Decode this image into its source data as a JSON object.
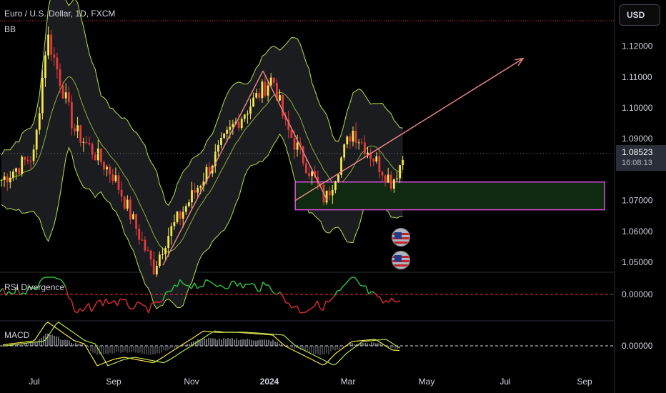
{
  "header": {
    "symbol_title": "Euro / U.S. Dollar, 1D, FXCM",
    "indicator_bb": "BB",
    "indicator_rsi": "RSI Divergence",
    "indicator_macd": "MACD",
    "currency_button": "USD"
  },
  "price_tag": {
    "price": "1.08523",
    "countdown": "16:08:13"
  },
  "colors": {
    "background": "#000000",
    "bull": "#f5e64b",
    "bear": "#e33b3b",
    "band_line": "#b6e24f",
    "band_fill": "#1b1c20",
    "zone_border": "#e14fe1",
    "zone_fill": "#0f2a10",
    "arrow": "#f08a8a",
    "rsi_up": "#2fbf3f",
    "rsi_down": "#d42d2d",
    "zero_line": "#e23b3b"
  },
  "icons": [
    "us-flag-icon",
    "us-flag-icon"
  ],
  "chart_data": [
    {
      "type": "candlestick",
      "title": "Euro / U.S. Dollar, 1D, FXCM",
      "x_ticks": [
        "Jul",
        "Sep",
        "Nov",
        "2024",
        "Mar",
        "May",
        "Jul",
        "Sep"
      ],
      "y_ticks": [
        "1.12000",
        "1.11000",
        "1.10000",
        "1.09000",
        "1.08523",
        "1.07000",
        "1.06000",
        "1.05000"
      ],
      "ylim": [
        1.047,
        1.128
      ],
      "current_price": 1.08523,
      "indicator": "BB",
      "path": [
        [
          "Jun 2023",
          1.075
        ],
        [
          "Jul 2023",
          1.085
        ],
        [
          "Jul 2023",
          1.124
        ],
        [
          "Aug 2023",
          1.093
        ],
        [
          "Sep 2023",
          1.078
        ],
        [
          "Oct 2023",
          1.048
        ],
        [
          "Oct 2023",
          1.058
        ],
        [
          "Nov 2023",
          1.072
        ],
        [
          "Dec 2023",
          1.094
        ],
        [
          "Jan 2024",
          1.11
        ],
        [
          "Jan 2024",
          1.094
        ],
        [
          "Feb 2024",
          1.078
        ],
        [
          "Feb 2024",
          1.07
        ],
        [
          "Mar 2024",
          1.093
        ],
        [
          "Apr 2024",
          1.076
        ],
        [
          "Apr 2024",
          1.085
        ]
      ],
      "annotations": [
        {
          "kind": "rectangle",
          "x": [
            "Feb 2024",
            "Sep 2024"
          ],
          "y": [
            1.067,
            1.076
          ]
        },
        {
          "kind": "arrow",
          "from": [
            "Feb 2024",
            1.07
          ],
          "to": [
            "Jun 2024",
            1.116
          ]
        }
      ]
    },
    {
      "type": "line",
      "title": "RSI Divergence",
      "y_ticks": [
        "0.00000"
      ],
      "reference_line": 0
    },
    {
      "type": "line",
      "title": "MACD",
      "y_ticks": [
        "0.00000"
      ],
      "reference_line": 0
    }
  ]
}
